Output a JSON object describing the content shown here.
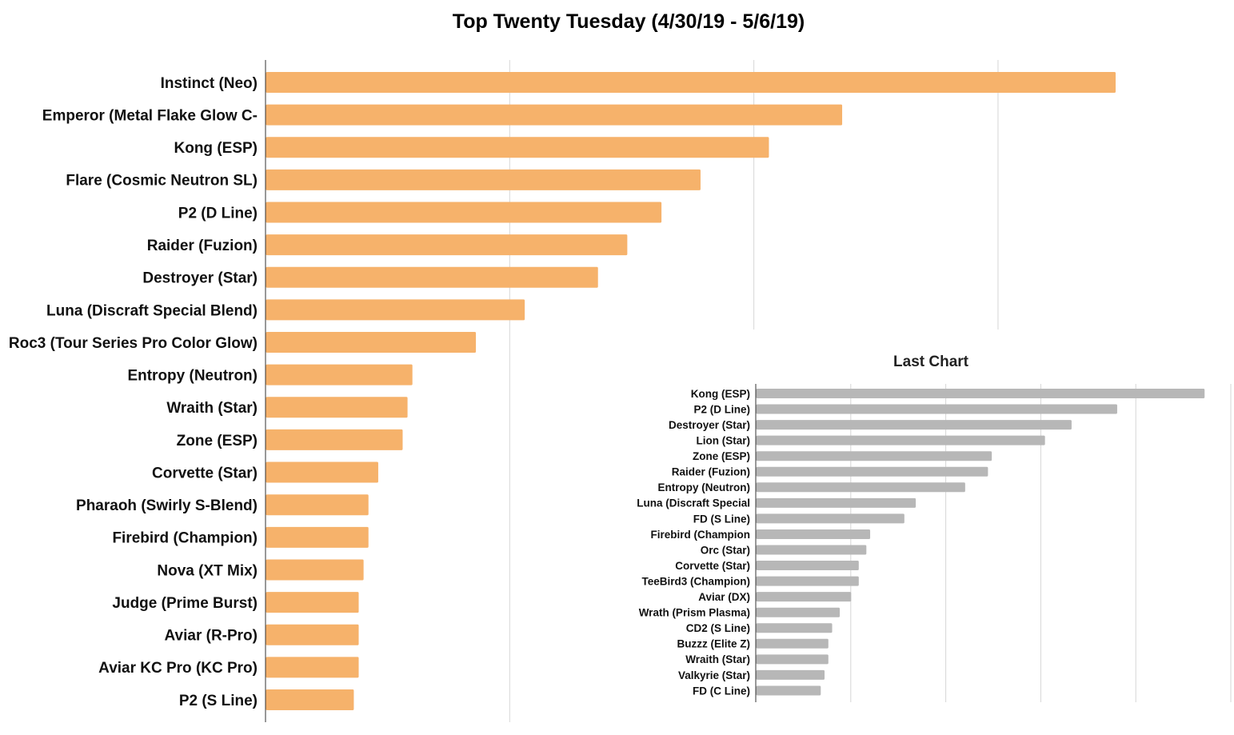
{
  "chart_data": [
    {
      "type": "bar",
      "orientation": "horizontal",
      "title": "Top Twenty Tuesday (4/30/19 - 5/6/19)",
      "xlabel": "",
      "ylabel": "",
      "categories": [
        "Instinct (Neo)",
        "Emperor (Metal Flake Glow C-",
        "Kong (ESP)",
        "Flare (Cosmic Neutron SL)",
        "P2 (D Line)",
        "Raider (Fuzion)",
        "Destroyer (Star)",
        "Luna (Discraft Special Blend)",
        "Roc3 (Tour Series Pro Color Glow)",
        "Entropy (Neutron)",
        "Wraith (Star)",
        "Zone (ESP)",
        "Corvette (Star)",
        "Pharaoh (Swirly S-Blend)",
        "Firebird (Champion)",
        "Nova (XT Mix)",
        "Judge (Prime Burst)",
        "Aviar (R-Pro)",
        "Aviar KC Pro (KC Pro)",
        "P2 (S Line)"
      ],
      "values": [
        174,
        118,
        103,
        89,
        81,
        74,
        68,
        53,
        43,
        30,
        29,
        28,
        23,
        21,
        21,
        20,
        19,
        19,
        19,
        18
      ],
      "xlim": [
        0,
        200
      ],
      "grid": true,
      "legend": "none",
      "color": "#F6B26B"
    },
    {
      "type": "bar",
      "orientation": "horizontal",
      "title": "Last Chart",
      "xlabel": "",
      "ylabel": "",
      "categories": [
        "Kong (ESP)",
        "P2 (D Line)",
        "Destroyer (Star)",
        "Lion (Star)",
        "Zone (ESP)",
        "Raider (Fuzion)",
        "Entropy (Neutron)",
        "Luna (Discraft Special",
        "FD (S Line)",
        "Firebird (Champion",
        "Orc (Star)",
        "Corvette (Star)",
        "TeeBird3 (Champion)",
        "Aviar (DX)",
        "Wrath (Prism Plasma)",
        "CD2 (S Line)",
        "Buzzz (Elite Z)",
        "Wraith (Star)",
        "Valkyrie (Star)",
        "FD (C Line)"
      ],
      "values": [
        118,
        95,
        83,
        76,
        62,
        61,
        55,
        42,
        39,
        30,
        29,
        27,
        27,
        25,
        22,
        20,
        19,
        19,
        18,
        17
      ],
      "xlim": [
        0,
        125
      ],
      "grid": true,
      "legend": "none",
      "color": "#B7B7B7"
    }
  ]
}
